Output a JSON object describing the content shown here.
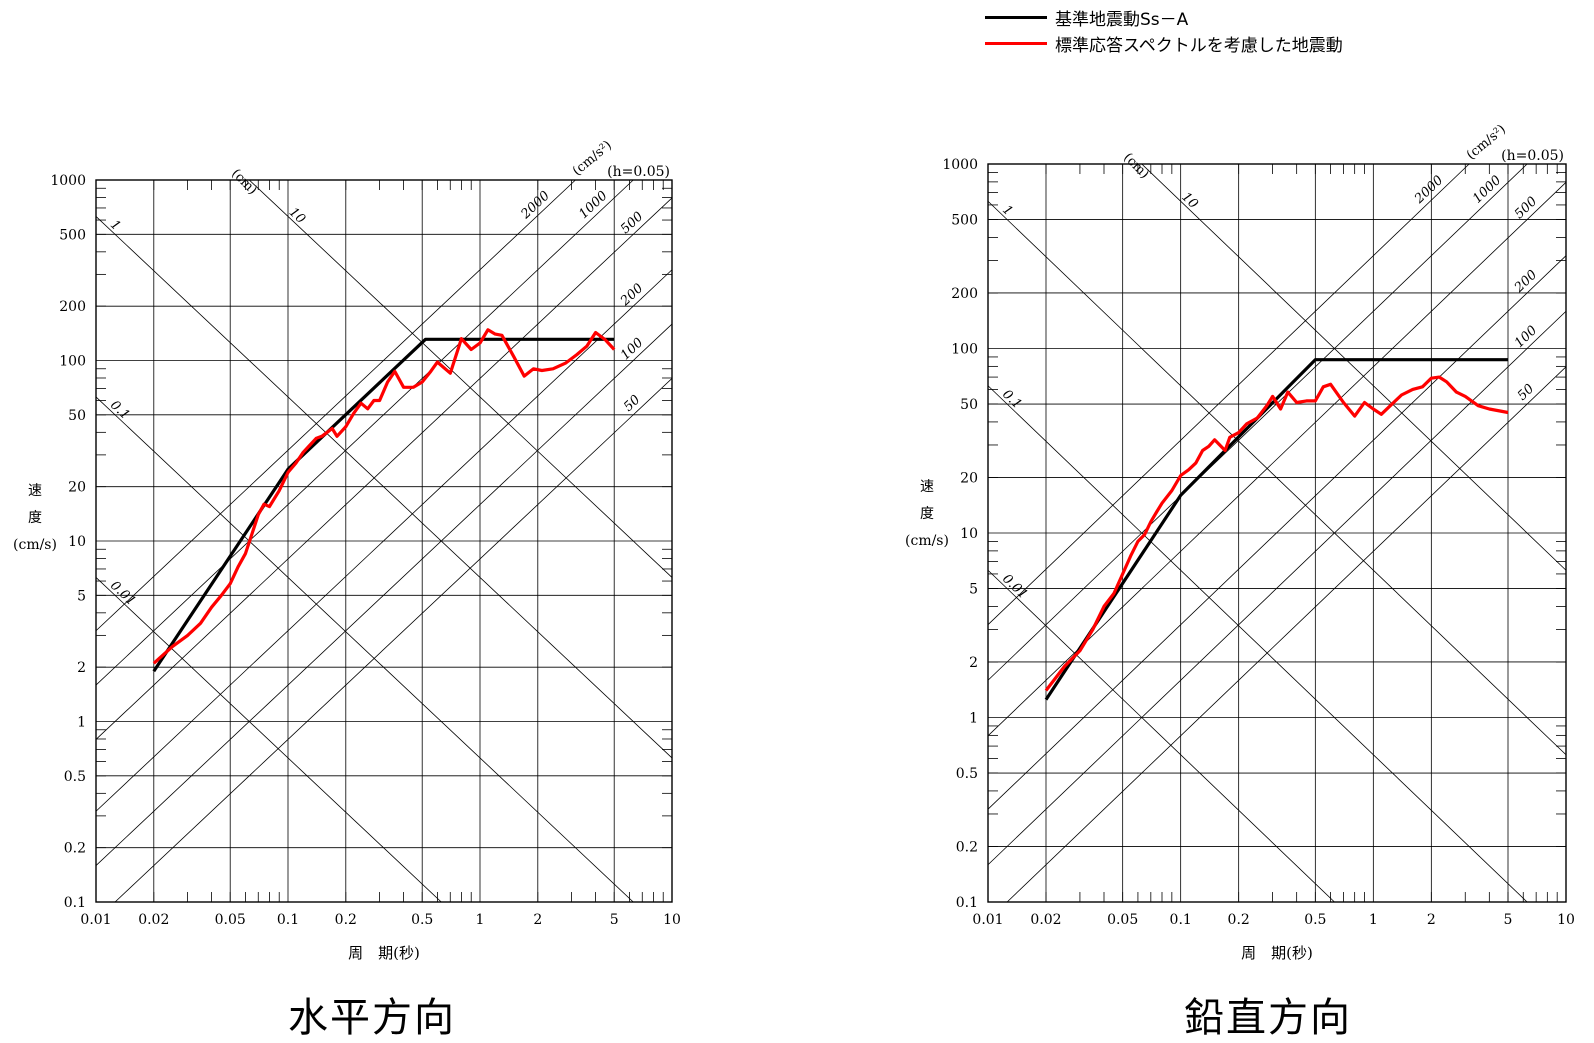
{
  "legend": {
    "items": [
      {
        "label": "基準地震動Ss－A",
        "color": "#000000"
      },
      {
        "label": "標準応答スペクトルを考慮した地震動",
        "color": "#ff0000"
      }
    ]
  },
  "common": {
    "xlabel": "周　期(秒)",
    "ylabel_chars": [
      "速",
      "度",
      "(cm/s)"
    ],
    "damping": "(h=0.05)",
    "disp_unit": "(cm)",
    "acc_unit": "(cm/s²)",
    "x_ticks": [
      {
        "v": 0.01,
        "label": "0.01"
      },
      {
        "v": 0.02,
        "label": "0.02"
      },
      {
        "v": 0.05,
        "label": "0.05"
      },
      {
        "v": 0.1,
        "label": "0.1"
      },
      {
        "v": 0.2,
        "label": "0.2"
      },
      {
        "v": 0.5,
        "label": "0.5"
      },
      {
        "v": 1,
        "label": "1"
      },
      {
        "v": 2,
        "label": "2"
      },
      {
        "v": 5,
        "label": "5"
      },
      {
        "v": 10,
        "label": "10"
      }
    ],
    "y_ticks": [
      {
        "v": 0.1,
        "label": "0.1"
      },
      {
        "v": 0.2,
        "label": "0.2"
      },
      {
        "v": 0.5,
        "label": "0.5"
      },
      {
        "v": 1,
        "label": "1"
      },
      {
        "v": 2,
        "label": "2"
      },
      {
        "v": 5,
        "label": "5"
      },
      {
        "v": 10,
        "label": "10"
      },
      {
        "v": 20,
        "label": "20"
      },
      {
        "v": 50,
        "label": "50"
      },
      {
        "v": 100,
        "label": "100"
      },
      {
        "v": 200,
        "label": "200"
      },
      {
        "v": 500,
        "label": "500"
      },
      {
        "v": 1000,
        "label": "1000"
      }
    ],
    "disp_lines": [
      {
        "v": 0.01,
        "label": "0.01"
      },
      {
        "v": 0.1,
        "label": "0.1"
      },
      {
        "v": 1,
        "label": "1"
      },
      {
        "v": 10,
        "label": "10"
      }
    ],
    "acc_lines": [
      {
        "v": 2000,
        "label": "2000"
      },
      {
        "v": 1000,
        "label": "1000"
      },
      {
        "v": 500,
        "label": "500"
      },
      {
        "v": 200,
        "label": "200"
      },
      {
        "v": 100,
        "label": "100"
      },
      {
        "v": 50,
        "label": "50"
      }
    ]
  },
  "chart_data": [
    {
      "type": "line",
      "title": "水平方向",
      "xlabel": "周　期(秒)",
      "ylabel": "速度(cm/s)",
      "xscale": "log",
      "yscale": "log",
      "xlim": [
        0.01,
        10
      ],
      "ylim": [
        0.1,
        1000
      ],
      "grid": true,
      "series": [
        {
          "name": "基準地震動Ss－A",
          "color": "#000000",
          "x": [
            0.02,
            0.1,
            0.52,
            5.0
          ],
          "y": [
            1.9,
            25,
            131,
            131
          ]
        },
        {
          "name": "標準応答スペクトルを考慮した地震動",
          "color": "#ff0000",
          "x": [
            0.02,
            0.025,
            0.03,
            0.035,
            0.04,
            0.045,
            0.05,
            0.055,
            0.06,
            0.065,
            0.07,
            0.075,
            0.08,
            0.09,
            0.1,
            0.11,
            0.12,
            0.13,
            0.14,
            0.15,
            0.17,
            0.18,
            0.2,
            0.22,
            0.24,
            0.26,
            0.28,
            0.3,
            0.33,
            0.36,
            0.4,
            0.45,
            0.5,
            0.55,
            0.6,
            0.7,
            0.8,
            0.9,
            1.0,
            1.1,
            1.2,
            1.3,
            1.5,
            1.7,
            1.9,
            2.1,
            2.4,
            2.8,
            3.2,
            3.6,
            4.0,
            4.5,
            5.0
          ],
          "y": [
            2.1,
            2.6,
            3.0,
            3.5,
            4.3,
            5.0,
            5.8,
            7.2,
            8.5,
            11,
            14,
            16,
            15.5,
            19,
            24,
            27,
            31,
            34,
            37,
            38,
            42,
            38,
            43,
            51,
            58,
            54,
            60,
            60,
            76,
            87,
            71,
            71,
            76,
            86,
            98,
            85,
            132,
            115,
            125,
            148,
            140,
            138,
            105,
            82,
            90,
            88,
            90,
            97,
            108,
            120,
            143,
            130,
            115
          ]
        }
      ]
    },
    {
      "type": "line",
      "title": "鉛直方向",
      "xlabel": "周　期(秒)",
      "ylabel": "速度(cm/s)",
      "xscale": "log",
      "yscale": "log",
      "xlim": [
        0.01,
        10
      ],
      "ylim": [
        0.1,
        1000
      ],
      "grid": true,
      "series": [
        {
          "name": "基準地震動Ss－A",
          "color": "#000000",
          "x": [
            0.02,
            0.1,
            0.5,
            5.0
          ],
          "y": [
            1.25,
            16,
            87,
            87
          ]
        },
        {
          "name": "標準応答スペクトルを考慮した地震動",
          "color": "#ff0000",
          "x": [
            0.02,
            0.025,
            0.03,
            0.035,
            0.04,
            0.045,
            0.05,
            0.055,
            0.06,
            0.065,
            0.07,
            0.075,
            0.08,
            0.09,
            0.1,
            0.11,
            0.12,
            0.13,
            0.14,
            0.15,
            0.17,
            0.18,
            0.2,
            0.22,
            0.25,
            0.28,
            0.3,
            0.33,
            0.36,
            0.4,
            0.45,
            0.5,
            0.55,
            0.6,
            0.7,
            0.8,
            0.9,
            1.0,
            1.1,
            1.2,
            1.4,
            1.6,
            1.8,
            2.0,
            2.2,
            2.4,
            2.7,
            3.0,
            3.5,
            4.0,
            5.0
          ],
          "y": [
            1.4,
            1.9,
            2.3,
            3.0,
            4.0,
            4.7,
            6.0,
            7.5,
            9.0,
            9.8,
            11.5,
            13,
            14.5,
            17,
            20.5,
            22,
            24,
            28,
            29.5,
            32,
            28,
            33,
            35,
            39,
            42,
            49,
            55,
            47,
            58,
            51,
            52,
            52,
            62,
            64,
            51,
            43,
            51,
            47,
            44,
            48,
            56,
            60,
            62,
            69,
            70,
            66,
            58,
            55,
            49,
            47,
            45
          ]
        }
      ]
    }
  ]
}
